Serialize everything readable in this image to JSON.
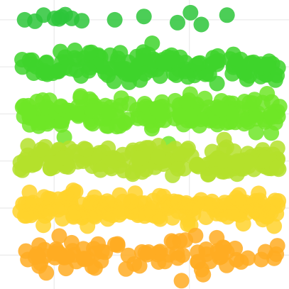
{
  "chart_data": {
    "type": "scatter",
    "title": "",
    "xlabel": "",
    "ylabel": "",
    "xlim": [
      0,
      1
    ],
    "ylim": [
      0.4,
      6.3
    ],
    "grid": true,
    "x_gridlines": [
      0.2,
      0.7
    ],
    "y_gridlines": [],
    "legend": "none",
    "series": [
      {
        "color": "#2dc63a",
        "y_jitter": 0.1,
        "points": [
          [
            0.057,
            6.0
          ],
          [
            0.095,
            5.97
          ],
          [
            0.127,
            6.1
          ],
          [
            0.168,
            6.03
          ],
          [
            0.184,
            6.02
          ],
          [
            0.193,
            6.06
          ],
          [
            0.207,
            6.11
          ],
          [
            0.231,
            6.03
          ],
          [
            0.268,
            5.98
          ],
          [
            0.39,
            6.0
          ],
          [
            0.498,
            6.07
          ],
          [
            0.622,
            5.94
          ],
          [
            0.67,
            6.15
          ],
          [
            0.71,
            5.9
          ],
          [
            0.805,
            6.1
          ]
        ]
      },
      {
        "color": "#3ed42c",
        "y_jitter": 0.3,
        "density": 150,
        "xrange": [
          0.04,
          1.0
        ]
      },
      {
        "color": "#6ee627",
        "y_jitter": 0.3,
        "density": 200,
        "xrange": [
          0.04,
          1.0
        ]
      },
      {
        "color": "#b4e02c",
        "y_jitter": 0.26,
        "density": 200,
        "xrange": [
          0.04,
          1.0
        ]
      },
      {
        "color": "#ffd22c",
        "y_jitter": 0.26,
        "density": 190,
        "xrange": [
          0.04,
          1.0
        ]
      },
      {
        "color": "#ffac22",
        "y_jitter": 0.3,
        "density": 90,
        "xrange": [
          0.04,
          1.0
        ]
      }
    ]
  }
}
